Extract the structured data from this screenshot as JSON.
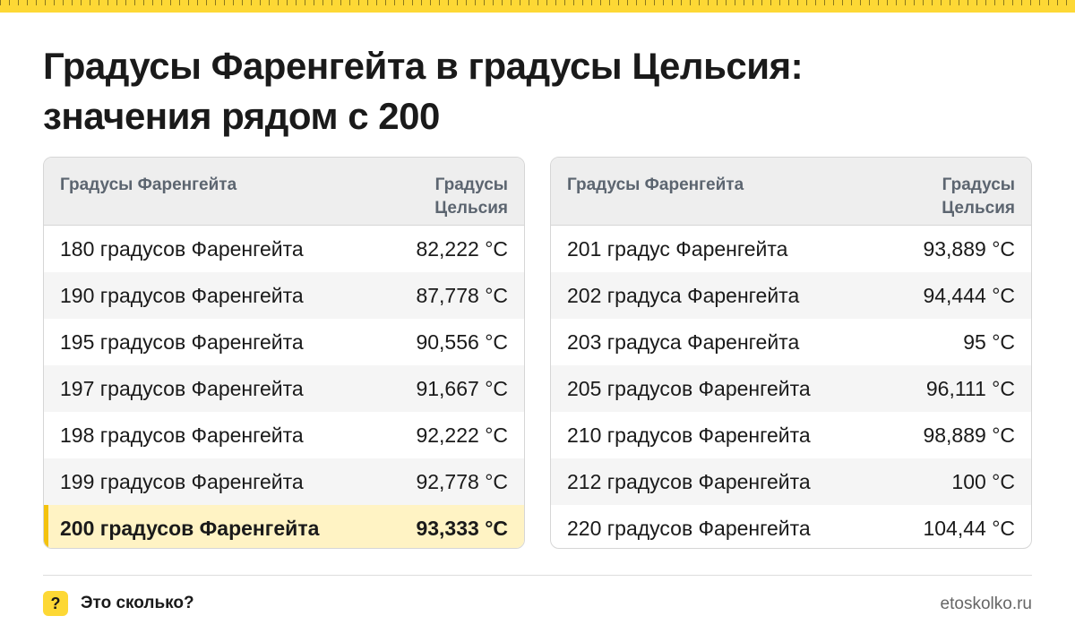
{
  "title": {
    "line1": "Градусы Фаренгейта в градусы Цельсия:",
    "line2": "значения рядом с 200"
  },
  "tables": {
    "left": {
      "header_f": "Градусы Фаренгейта",
      "header_c": "Градусы Цельсия",
      "rows": [
        {
          "f": "180 градусов Фаренгейта",
          "c": "82,222 °C"
        },
        {
          "f": "190 градусов Фаренгейта",
          "c": "87,778 °C"
        },
        {
          "f": "195 градусов Фаренгейта",
          "c": "90,556 °C"
        },
        {
          "f": "197 градусов Фаренгейта",
          "c": "91,667 °C"
        },
        {
          "f": "198 градусов Фаренгейта",
          "c": "92,222 °C"
        },
        {
          "f": "199 градусов Фаренгейта",
          "c": "92,778 °C"
        },
        {
          "f": "200 градусов Фаренгейта",
          "c": "93,333 °C"
        }
      ]
    },
    "right": {
      "header_f": "Градусы Фаренгейта",
      "header_c": "Градусы Цельсия",
      "rows": [
        {
          "f": "201 градус Фаренгейта",
          "c": "93,889 °C"
        },
        {
          "f": "202 градуса Фаренгейта",
          "c": "94,444 °C"
        },
        {
          "f": "203 градуса Фаренгейта",
          "c": "95 °C"
        },
        {
          "f": "205 градусов Фаренгейта",
          "c": "96,111 °C"
        },
        {
          "f": "210 градусов Фаренгейта",
          "c": "98,889 °C"
        },
        {
          "f": "212 градусов Фаренгейта",
          "c": "100 °C"
        },
        {
          "f": "220 градусов Фаренгейта",
          "c": "104,44 °C"
        }
      ]
    }
  },
  "footer": {
    "logo_glyph": "?",
    "brand": "Это сколько?",
    "site": "etoskolko.ru"
  },
  "colors": {
    "accent": "#fdd835",
    "highlight_row": "#fff3c4",
    "header_bg": "#eeeeee"
  }
}
